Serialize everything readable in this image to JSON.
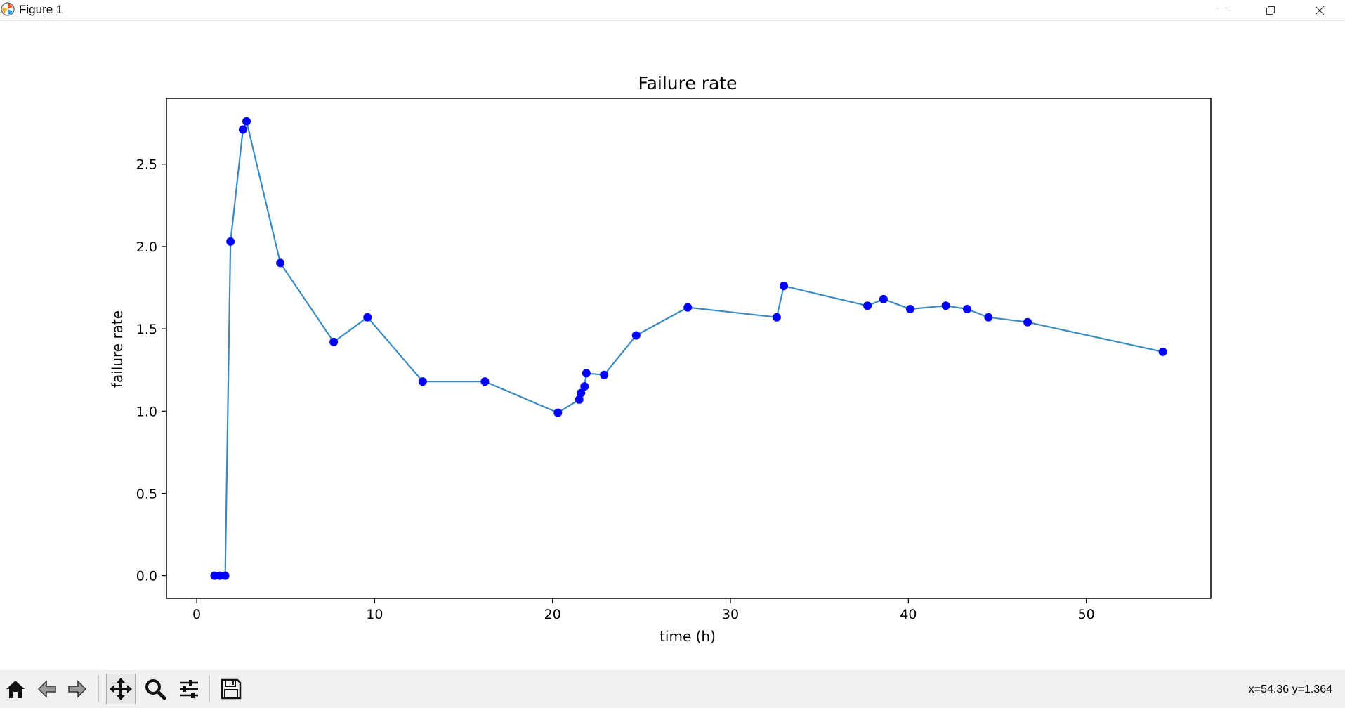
{
  "window": {
    "title": "Figure 1",
    "icons": [
      "matplotlib-icon",
      "minimize-icon",
      "restore-icon",
      "close-icon"
    ]
  },
  "toolbar": {
    "buttons": [
      {
        "name": "home",
        "icon": "home-icon"
      },
      {
        "name": "back",
        "icon": "arrow-left-icon"
      },
      {
        "name": "forward",
        "icon": "arrow-right-icon"
      },
      {
        "name": "pan",
        "icon": "move-arrows-icon"
      },
      {
        "name": "zoom",
        "icon": "magnifier-icon"
      },
      {
        "name": "subplots",
        "icon": "sliders-icon"
      },
      {
        "name": "save",
        "icon": "floppy-disk-icon"
      }
    ],
    "coordinates": "x=54.36 y=1.364"
  },
  "chart_data": {
    "type": "line",
    "title": "Failure rate",
    "xlabel": "time (h)",
    "ylabel": "failure rate",
    "xlim": [
      -1.7,
      57.0
    ],
    "ylim": [
      -0.138,
      2.9
    ],
    "xticks": [
      0,
      10,
      20,
      30,
      40,
      50
    ],
    "yticks": [
      0.0,
      0.5,
      1.0,
      1.5,
      2.0,
      2.5
    ],
    "xtick_labels": [
      "0",
      "10",
      "20",
      "30",
      "40",
      "50"
    ],
    "ytick_labels": [
      "0.0",
      "0.5",
      "1.0",
      "1.5",
      "2.0",
      "2.5"
    ],
    "grid": false,
    "line_color": "#3b8bc2",
    "marker_color": "#0000ff",
    "x": [
      1.0,
      1.3,
      1.6,
      1.9,
      2.6,
      2.8,
      4.7,
      7.7,
      9.6,
      12.7,
      16.2,
      20.3,
      21.5,
      21.6,
      21.8,
      21.9,
      22.9,
      24.7,
      27.6,
      32.6,
      33.0,
      37.7,
      38.6,
      40.1,
      42.1,
      43.3,
      44.5,
      46.7,
      54.3
    ],
    "y": [
      0.0,
      0.0,
      0.0,
      2.03,
      2.71,
      2.76,
      1.9,
      1.42,
      1.57,
      1.18,
      1.18,
      0.99,
      1.07,
      1.11,
      1.15,
      1.23,
      1.22,
      1.46,
      1.63,
      1.57,
      1.76,
      1.64,
      1.68,
      1.62,
      1.64,
      1.62,
      1.57,
      1.54,
      1.36
    ]
  }
}
